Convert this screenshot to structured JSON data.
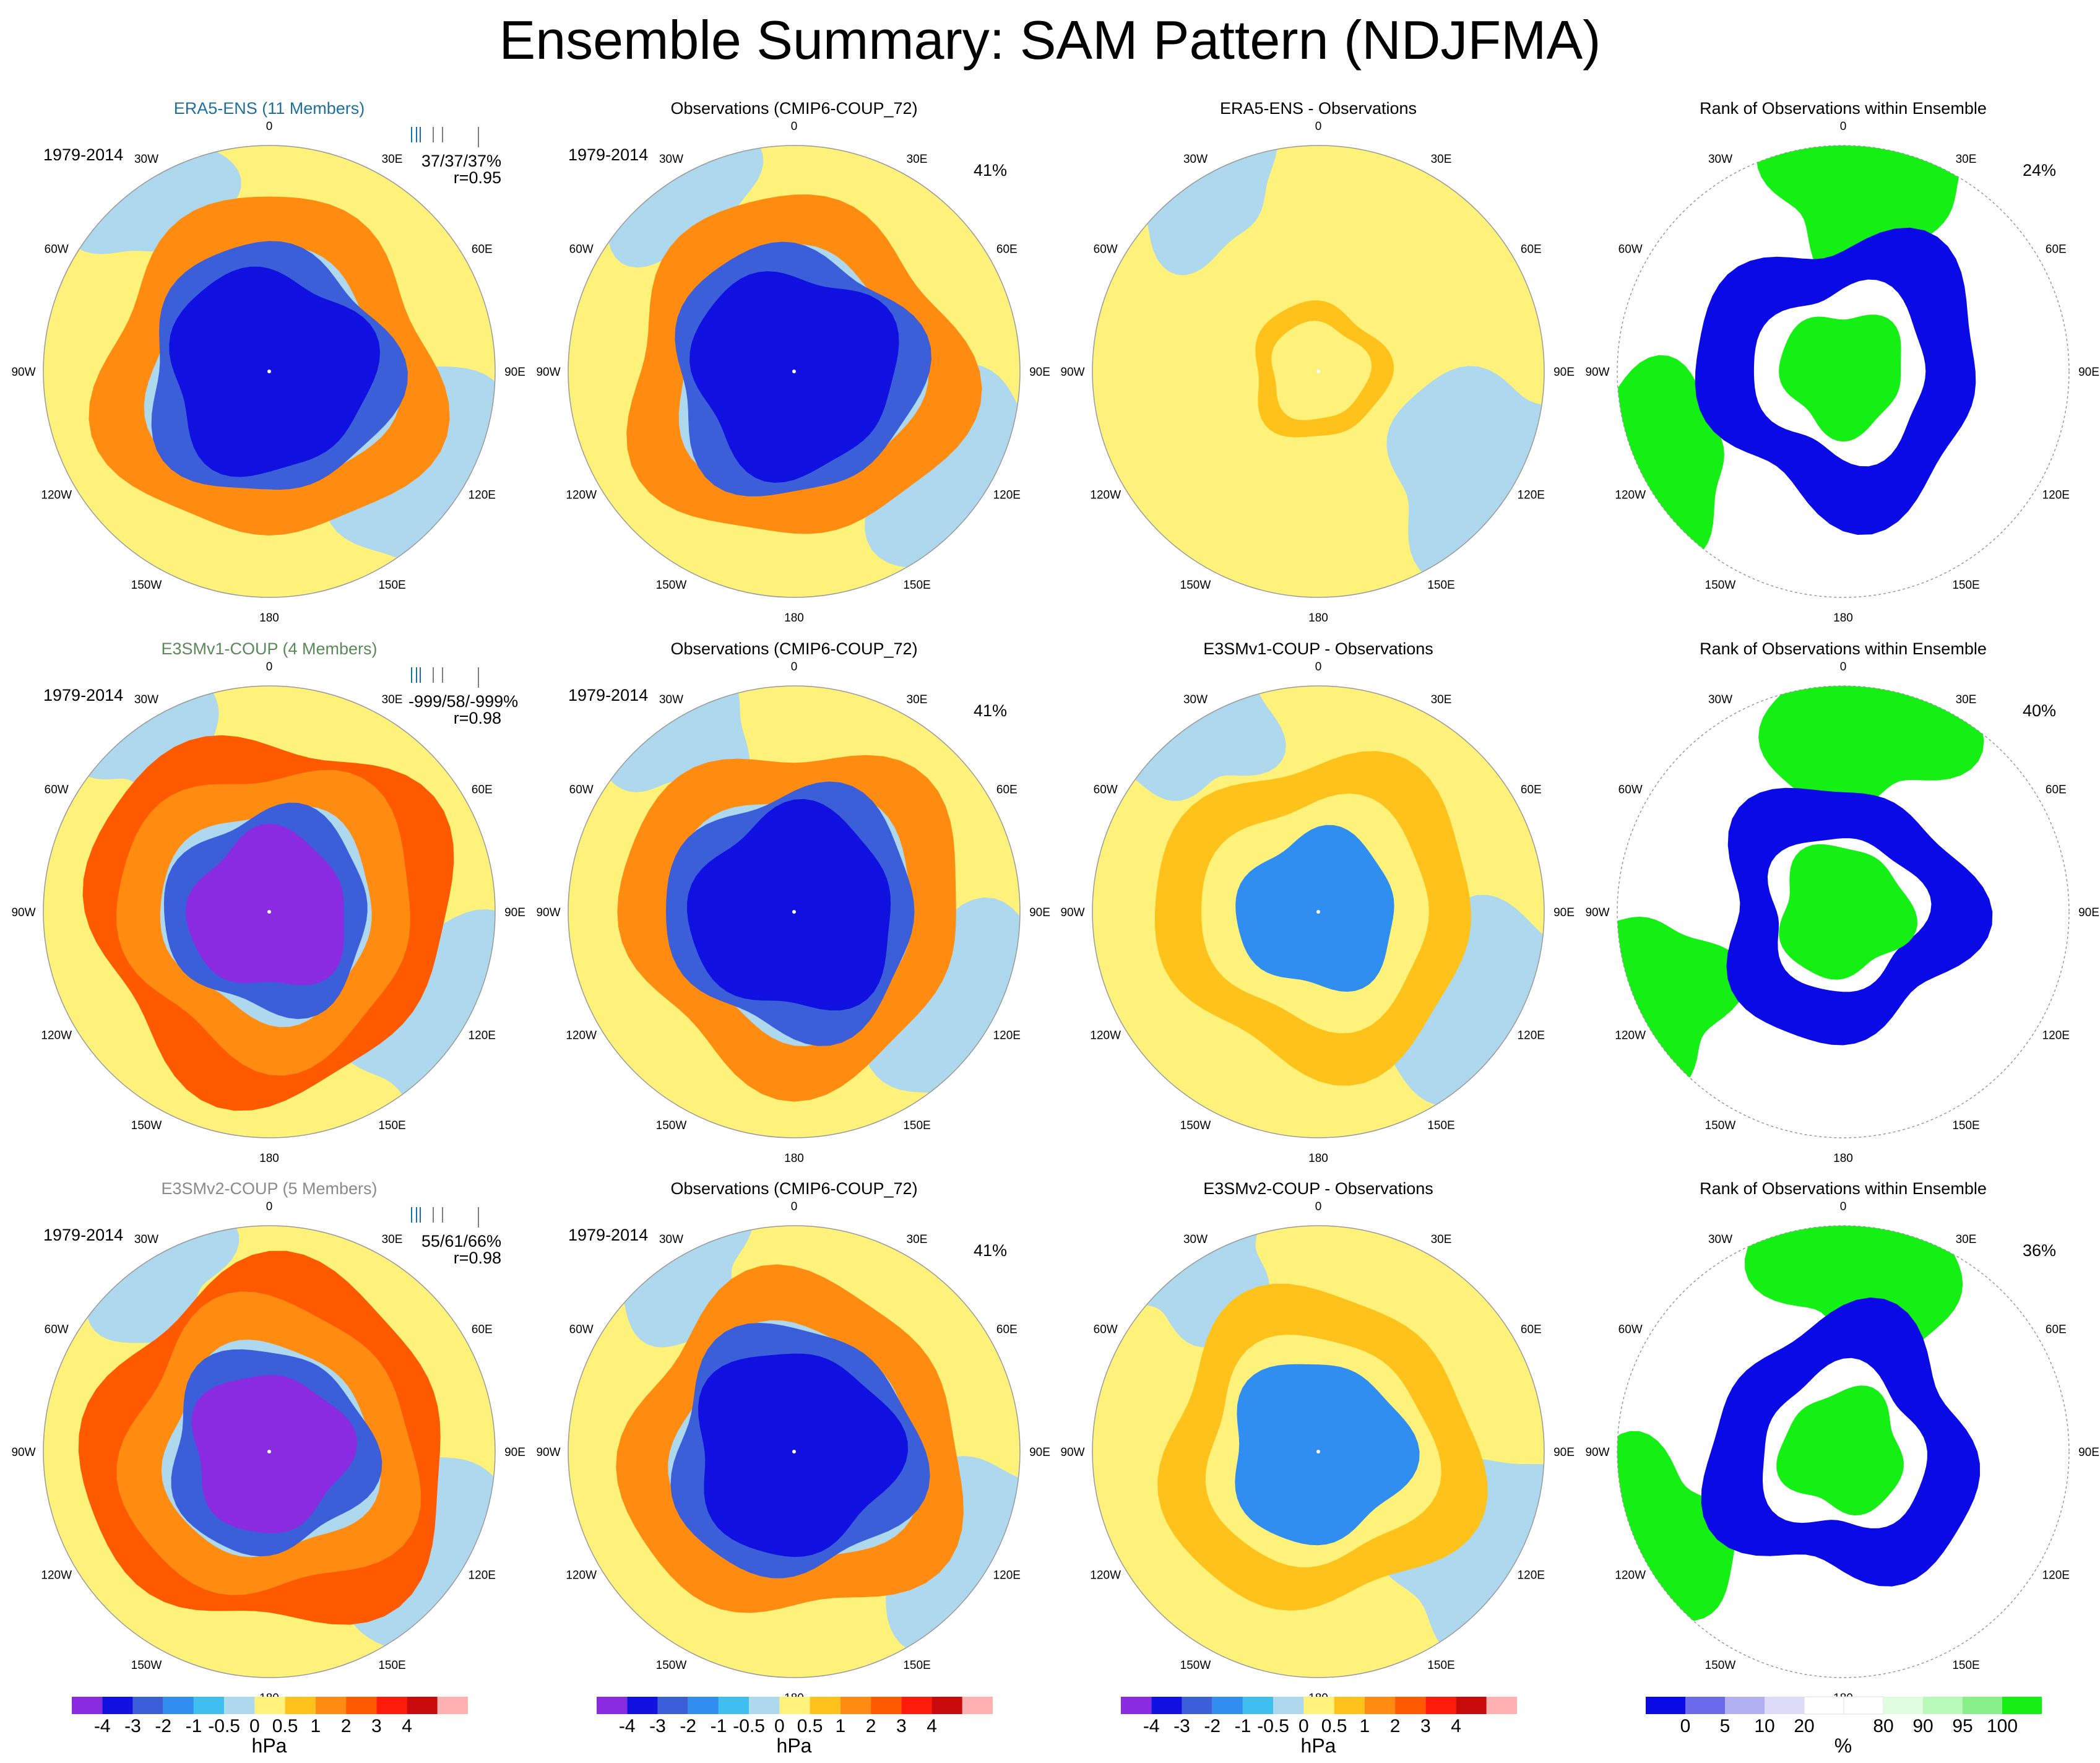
{
  "title": "Ensemble Summary: SAM Pattern (NDJFMA)",
  "period_label": "1979-2014",
  "lon_labels": [
    "0",
    "30E",
    "60E",
    "90E",
    "120E",
    "150E",
    "180",
    "150W",
    "120W",
    "90W",
    "60W",
    "30W"
  ],
  "hpa_levels": {
    "colors": [
      "#8a2be2",
      "#1010e0",
      "#3a5fd8",
      "#2f8ef0",
      "#3fbef0",
      "#aed8ee",
      "#fff27a",
      "#ffc21a",
      "#ff8c10",
      "#ff5a00",
      "#ff1a0a",
      "#c80a0a",
      "#ffb0b0"
    ],
    "tick_labels": [
      "-4",
      "-3",
      "-2",
      "-1",
      "-0.5",
      "0",
      "0.5",
      "1",
      "2",
      "3",
      "4"
    ],
    "unit": "hPa"
  },
  "rank_levels": {
    "colors": [
      "#0a0ae6",
      "#6a6aea",
      "#b0b0f2",
      "#dcdcf8",
      "#ffffff",
      "#ffffff",
      "#e0fce0",
      "#b8f8b8",
      "#88f088",
      "#14f014"
    ],
    "tick_labels": [
      "0",
      "5",
      "10",
      "20",
      "80",
      "90",
      "95",
      "100"
    ],
    "unit": "%"
  },
  "rows": [
    {
      "model": {
        "title": "ERA5-ENS (11 Members)",
        "title_color": "#1f6f9f",
        "stats": "37/37/37%",
        "r": "r=0.95"
      },
      "obs": {
        "title": "Observations (CMIP6-COUP_72)",
        "pct": "41%"
      },
      "diff": {
        "title": "ERA5-ENS - Observations"
      },
      "rank": {
        "title": "Rank of Observations within Ensemble",
        "pct": "24%"
      }
    },
    {
      "model": {
        "title": "E3SMv1-COUP (4 Members)",
        "title_color": "#5a8a5a",
        "stats": "-999/58/-999%",
        "r": "r=0.98"
      },
      "obs": {
        "title": "Observations (CMIP6-COUP_72)",
        "pct": "41%"
      },
      "diff": {
        "title": "E3SMv1-COUP - Observations"
      },
      "rank": {
        "title": "Rank of Observations within Ensemble",
        "pct": "40%"
      }
    },
    {
      "model": {
        "title": "E3SMv2-COUP (5 Members)",
        "title_color": "#8a8a8a",
        "stats": "55/61/66%",
        "r": "r=0.98"
      },
      "obs": {
        "title": "Observations (CMIP6-COUP_72)",
        "pct": "41%"
      },
      "diff": {
        "title": "E3SMv2-COUP - Observations"
      },
      "rank": {
        "title": "Rank of Observations within Ensemble",
        "pct": "36%"
      }
    }
  ],
  "chart_data": {
    "type": "heatmap",
    "projection": "south-polar-stereographic",
    "panels": [
      {
        "row": 0,
        "col": 0,
        "kind": "model",
        "rings": [
          {
            "r": 0.45,
            "level": -3
          },
          {
            "r": 0.55,
            "level": -2
          },
          {
            "r": 0.75,
            "level": 1
          }
        ]
      },
      {
        "row": 0,
        "col": 1,
        "kind": "obs",
        "rings": [
          {
            "r": 0.45,
            "level": -3
          },
          {
            "r": 0.55,
            "level": -2
          },
          {
            "r": 0.75,
            "level": 1
          }
        ]
      },
      {
        "row": 0,
        "col": 2,
        "kind": "diff",
        "rings": [
          {
            "r": 0.3,
            "level": 0.5
          }
        ]
      },
      {
        "row": 0,
        "col": 3,
        "kind": "rank",
        "blue_fraction": 0.45,
        "green_fraction": 0.3
      },
      {
        "row": 1,
        "col": 0,
        "kind": "model",
        "rings": [
          {
            "r": 0.35,
            "level": -4
          },
          {
            "r": 0.45,
            "level": -2
          },
          {
            "r": 0.65,
            "level": 1
          },
          {
            "r": 0.8,
            "level": 2
          }
        ]
      },
      {
        "row": 1,
        "col": 1,
        "kind": "obs",
        "rings": [
          {
            "r": 0.45,
            "level": -3
          },
          {
            "r": 0.55,
            "level": -2
          },
          {
            "r": 0.75,
            "level": 1
          }
        ]
      },
      {
        "row": 1,
        "col": 2,
        "kind": "diff",
        "rings": [
          {
            "r": 0.35,
            "level": -1
          },
          {
            "r": 0.7,
            "level": 0.5
          }
        ]
      },
      {
        "row": 1,
        "col": 3,
        "kind": "rank",
        "blue_fraction": 0.35,
        "green_fraction": 0.35
      },
      {
        "row": 2,
        "col": 0,
        "kind": "model",
        "rings": [
          {
            "r": 0.35,
            "level": -4
          },
          {
            "r": 0.45,
            "level": -2
          },
          {
            "r": 0.65,
            "level": 1
          },
          {
            "r": 0.8,
            "level": 2
          }
        ]
      },
      {
        "row": 2,
        "col": 1,
        "kind": "obs",
        "rings": [
          {
            "r": 0.45,
            "level": -3
          },
          {
            "r": 0.55,
            "level": -2
          },
          {
            "r": 0.75,
            "level": 1
          }
        ]
      },
      {
        "row": 2,
        "col": 2,
        "kind": "diff",
        "rings": [
          {
            "r": 0.4,
            "level": -1
          },
          {
            "r": 0.7,
            "level": 0.5
          }
        ]
      },
      {
        "row": 2,
        "col": 3,
        "kind": "rank",
        "blue_fraction": 0.4,
        "green_fraction": 0.3
      }
    ],
    "colorbar_hpa": {
      "ticks": [
        -4,
        -3,
        -2,
        -1,
        -0.5,
        0,
        0.5,
        1,
        2,
        3,
        4
      ],
      "unit": "hPa"
    },
    "colorbar_rank": {
      "ticks": [
        0,
        5,
        10,
        20,
        80,
        90,
        95,
        100
      ],
      "unit": "%"
    }
  }
}
